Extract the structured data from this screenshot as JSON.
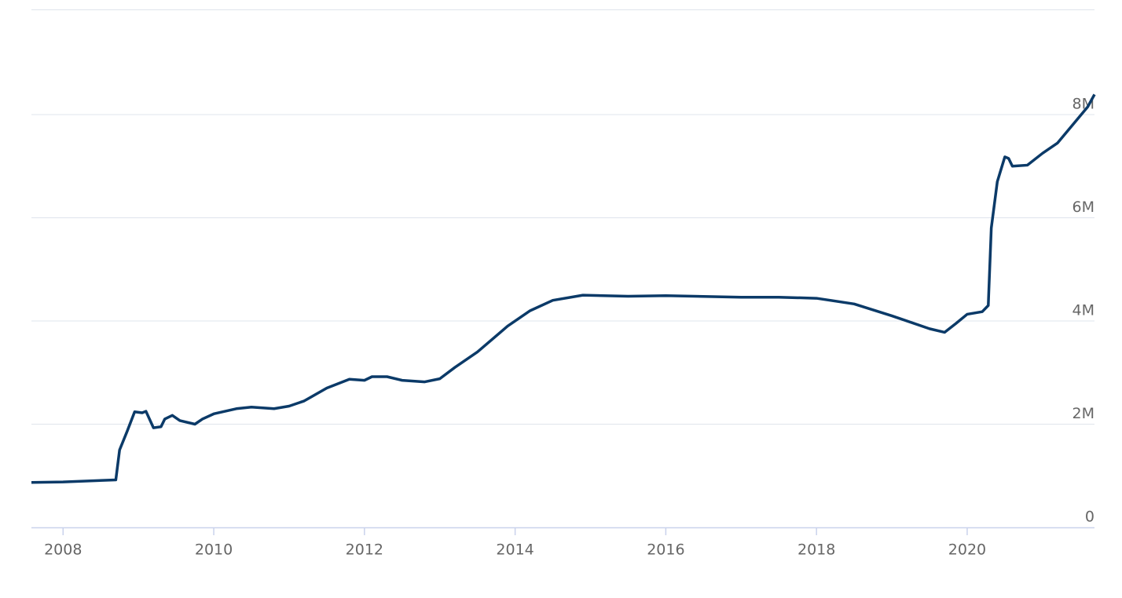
{
  "chart_data": {
    "type": "line",
    "x": [
      2007.58,
      2008.0,
      2008.7,
      2008.75,
      2008.85,
      2008.95,
      2009.05,
      2009.1,
      2009.2,
      2009.3,
      2009.35,
      2009.45,
      2009.55,
      2009.75,
      2009.85,
      2010.0,
      2010.3,
      2010.5,
      2010.8,
      2011.0,
      2011.2,
      2011.5,
      2011.8,
      2012.0,
      2012.1,
      2012.3,
      2012.5,
      2012.8,
      2013.0,
      2013.2,
      2013.5,
      2013.9,
      2014.2,
      2014.5,
      2014.9,
      2015.5,
      2016.0,
      2017.0,
      2017.5,
      2018.0,
      2018.5,
      2019.0,
      2019.5,
      2019.7,
      2019.85,
      2020.0,
      2020.2,
      2020.28,
      2020.32,
      2020.4,
      2020.5,
      2020.55,
      2020.6,
      2020.8,
      2021.0,
      2021.2,
      2021.4,
      2021.6,
      2021.69
    ],
    "series": [
      {
        "color": "#0b3a68",
        "values": [
          870000,
          880000,
          920000,
          1500000,
          1860000,
          2240000,
          2220000,
          2250000,
          1930000,
          1950000,
          2100000,
          2170000,
          2070000,
          2000000,
          2100000,
          2200000,
          2300000,
          2330000,
          2300000,
          2350000,
          2450000,
          2700000,
          2870000,
          2850000,
          2920000,
          2920000,
          2850000,
          2820000,
          2880000,
          3100000,
          3400000,
          3900000,
          4200000,
          4400000,
          4500000,
          4480000,
          4490000,
          4460000,
          4460000,
          4440000,
          4330000,
          4100000,
          3850000,
          3780000,
          3950000,
          4130000,
          4180000,
          4300000,
          5800000,
          6700000,
          7180000,
          7150000,
          7000000,
          7020000,
          7250000,
          7450000,
          7800000,
          8150000,
          8390000
        ]
      }
    ],
    "xlim": [
      2007.58,
      2021.69
    ],
    "xticks": [
      2008,
      2010,
      2012,
      2014,
      2016,
      2018,
      2020
    ],
    "ylim": [
      0,
      10000000
    ],
    "yticks": [
      0,
      {
        "value": 2000000,
        "label": "2M"
      },
      {
        "value": 4000000,
        "label": "4M"
      },
      {
        "value": 6000000,
        "label": "6M"
      },
      {
        "value": 8000000,
        "label": "8M"
      }
    ],
    "grid": true
  }
}
